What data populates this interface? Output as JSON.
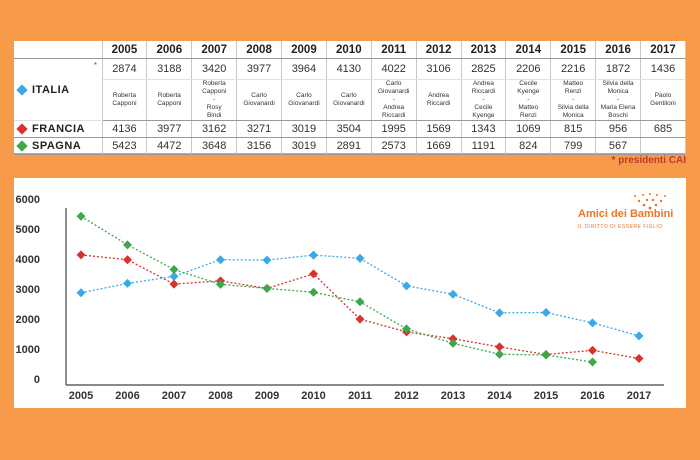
{
  "years": [
    "2005",
    "2006",
    "2007",
    "2008",
    "2009",
    "2010",
    "2011",
    "2012",
    "2013",
    "2014",
    "2015",
    "2016",
    "2017"
  ],
  "table": {
    "italia_label": "ITALIA",
    "italia_note_marker": "*",
    "francia_label": "FRANCIA",
    "spagna_label": "SPAGNA",
    "italia_values": [
      "2874",
      "3188",
      "3420",
      "3977",
      "3964",
      "4130",
      "4022",
      "3106",
      "2825",
      "2206",
      "2216",
      "1872",
      "1436"
    ],
    "francia_values": [
      "4136",
      "3977",
      "3162",
      "3271",
      "3019",
      "3504",
      "1995",
      "1569",
      "1343",
      "1069",
      "815",
      "956",
      "685"
    ],
    "spagna_values": [
      "5423",
      "4472",
      "3648",
      "3156",
      "3019",
      "2891",
      "2573",
      "1669",
      "1191",
      "824",
      "799",
      "567",
      ""
    ],
    "presidents": [
      [
        "Roberta",
        "Capponi"
      ],
      [
        "Roberta",
        "Capponi"
      ],
      [
        "Roberta",
        "Capponi",
        "-",
        "Rosy",
        "Bindi"
      ],
      [
        "Carlo",
        "Giovanardi"
      ],
      [
        "Carlo",
        "Giovanardi"
      ],
      [
        "Carlo",
        "Giovanardi"
      ],
      [
        "Carlo",
        "Giovanardi",
        "-",
        "Andrea",
        "Riccardi"
      ],
      [
        "Andrea",
        "Riccardi"
      ],
      [
        "Andrea",
        "Riccardi",
        "-",
        "Cecile",
        "Kyenge"
      ],
      [
        "Cecile",
        "Kyenge",
        "-",
        "Matteo",
        "Renzi"
      ],
      [
        "Matteo",
        "Renzi",
        "-",
        "Silvia della",
        "Monica"
      ],
      [
        "Silvia della",
        "Monica",
        "-",
        "Maria Elena",
        "Boschi"
      ],
      [
        "Paolo",
        "Gentiloni"
      ]
    ],
    "footnote": "* presidenti CAI"
  },
  "logo": {
    "title": "Amici dei Bambini",
    "subtitle": "IL DIRITTO DI ESSERE FIGLIO"
  },
  "colors": {
    "italia": "#3BA9E9",
    "francia": "#D9322E",
    "spagna": "#3DA84A",
    "background": "#F79A4A"
  },
  "chart_data": {
    "type": "line",
    "x": [
      2005,
      2006,
      2007,
      2008,
      2009,
      2010,
      2011,
      2012,
      2013,
      2014,
      2015,
      2016,
      2017
    ],
    "ylim": [
      0,
      6000
    ],
    "yticks": [
      0,
      1000,
      2000,
      3000,
      4000,
      5000,
      6000
    ],
    "series": [
      {
        "name": "ITALIA",
        "color": "#3BA9E9",
        "values": [
          2874,
          3188,
          3420,
          3977,
          3964,
          4130,
          4022,
          3106,
          2825,
          2206,
          2216,
          1872,
          1436
        ]
      },
      {
        "name": "FRANCIA",
        "color": "#D9322E",
        "values": [
          4136,
          3977,
          3162,
          3271,
          3019,
          3504,
          1995,
          1569,
          1343,
          1069,
          815,
          956,
          685
        ]
      },
      {
        "name": "SPAGNA",
        "color": "#3DA84A",
        "values": [
          5423,
          4472,
          3648,
          3156,
          3019,
          2891,
          2573,
          1669,
          1191,
          824,
          799,
          567,
          null
        ]
      }
    ],
    "grid": false,
    "marker": "diamond",
    "line_style": "dotted"
  }
}
